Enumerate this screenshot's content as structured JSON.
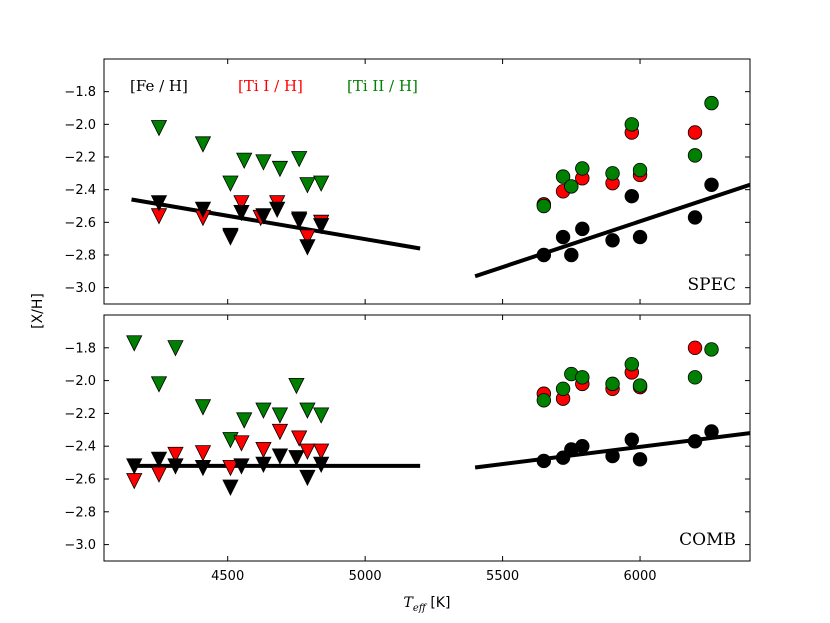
{
  "figure": {
    "ylabel": "[X/H]",
    "xlabel_main": "T",
    "xlabel_sub": "eff",
    "xlabel_unit": " [K]",
    "legend": [
      {
        "text": "[Fe / H]",
        "color": "#000000"
      },
      {
        "text": "[Ti I / H]",
        "color": "#ff0000"
      },
      {
        "text": "[Ti II / H]",
        "color": "#008000"
      }
    ]
  },
  "chart_data": [
    {
      "type": "scatter",
      "panel_label": "SPEC",
      "xlim": [
        4050,
        6400
      ],
      "ylim": [
        -3.1,
        -1.6
      ],
      "xticks": [
        4500,
        5000,
        5500,
        6000
      ],
      "xtick_labels": [
        "4500",
        "5000",
        "5500",
        "6000"
      ],
      "yticks": [
        -3.0,
        -2.8,
        -2.6,
        -2.4,
        -2.2,
        -2.0,
        -1.8
      ],
      "ytick_labels": [
        "−3.0",
        "−2.8",
        "−2.6",
        "−2.4",
        "−2.2",
        "−2.0",
        "−1.8"
      ],
      "series": [
        {
          "name": "Ti II upper limits",
          "marker": "triangle-down",
          "color": "#008000",
          "x": [
            4250,
            4410,
            4510,
            4560,
            4630,
            4690,
            4760,
            4790,
            4840
          ],
          "y": [
            -2.01,
            -2.11,
            -2.35,
            -2.21,
            -2.22,
            -2.26,
            -2.2,
            -2.36,
            -2.35
          ]
        },
        {
          "name": "Ti I upper limits",
          "marker": "triangle-down",
          "color": "#ff0000",
          "x": [
            4250,
            4410,
            4510,
            4550,
            4620,
            4680,
            4760,
            4790,
            4840
          ],
          "y": [
            -2.55,
            -2.56,
            -2.68,
            -2.47,
            -2.56,
            -2.47,
            -2.58,
            -2.68,
            -2.59
          ]
        },
        {
          "name": "Fe upper limits",
          "marker": "triangle-down",
          "color": "#000000",
          "x": [
            4250,
            4410,
            4510,
            4550,
            4630,
            4680,
            4760,
            4790,
            4840
          ],
          "y": [
            -2.47,
            -2.51,
            -2.67,
            -2.53,
            -2.55,
            -2.51,
            -2.57,
            -2.74,
            -2.61
          ]
        },
        {
          "name": "Ti I",
          "marker": "circle",
          "color": "#ff0000",
          "x": [
            5650,
            5720,
            5790,
            5900,
            5970,
            6000,
            6200
          ],
          "y": [
            -2.49,
            -2.41,
            -2.33,
            -2.36,
            -2.05,
            -2.31,
            -2.05
          ]
        },
        {
          "name": "Ti II",
          "marker": "circle",
          "color": "#008000",
          "x": [
            5650,
            5720,
            5750,
            5790,
            5900,
            5970,
            6000,
            6200,
            6260
          ],
          "y": [
            -2.5,
            -2.32,
            -2.38,
            -2.27,
            -2.3,
            -2.0,
            -2.28,
            -2.19,
            -1.87
          ]
        },
        {
          "name": "Fe",
          "marker": "circle",
          "color": "#000000",
          "x": [
            5650,
            5720,
            5750,
            5790,
            5900,
            5970,
            6000,
            6200,
            6260
          ],
          "y": [
            -2.8,
            -2.69,
            -2.8,
            -2.64,
            -2.71,
            -2.44,
            -2.69,
            -2.57,
            -2.37
          ]
        }
      ],
      "fit_lines": [
        {
          "x": [
            4150,
            5200
          ],
          "y": [
            -2.46,
            -2.76
          ]
        },
        {
          "x": [
            5400,
            6400
          ],
          "y": [
            -2.93,
            -2.37
          ]
        }
      ]
    },
    {
      "type": "scatter",
      "panel_label": "COMB",
      "xlim": [
        4050,
        6400
      ],
      "ylim": [
        -3.1,
        -1.6
      ],
      "xticks": [
        4500,
        5000,
        5500,
        6000
      ],
      "xtick_labels": [
        "4500",
        "5000",
        "5500",
        "6000"
      ],
      "yticks": [
        -3.0,
        -2.8,
        -2.6,
        -2.4,
        -2.2,
        -2.0,
        -1.8
      ],
      "ytick_labels": [
        "−3.0",
        "−2.8",
        "−2.6",
        "−2.4",
        "−2.2",
        "−2.0",
        "−1.8"
      ],
      "series": [
        {
          "name": "Ti II upper limits",
          "marker": "triangle-down",
          "color": "#008000",
          "x": [
            4160,
            4250,
            4310,
            4410,
            4510,
            4560,
            4630,
            4690,
            4750,
            4790,
            4840
          ],
          "y": [
            -1.76,
            -2.01,
            -1.79,
            -2.15,
            -2.35,
            -2.23,
            -2.17,
            -2.2,
            -2.02,
            -2.17,
            -2.2
          ]
        },
        {
          "name": "Ti I upper limits",
          "marker": "triangle-down",
          "color": "#ff0000",
          "x": [
            4160,
            4250,
            4310,
            4410,
            4510,
            4550,
            4630,
            4690,
            4760,
            4790,
            4840
          ],
          "y": [
            -2.6,
            -2.56,
            -2.44,
            -2.43,
            -2.52,
            -2.37,
            -2.41,
            -2.3,
            -2.34,
            -2.42,
            -2.42
          ]
        },
        {
          "name": "Fe upper limits",
          "marker": "triangle-down",
          "color": "#000000",
          "x": [
            4160,
            4250,
            4310,
            4410,
            4510,
            4550,
            4630,
            4690,
            4750,
            4790,
            4840
          ],
          "y": [
            -2.51,
            -2.47,
            -2.51,
            -2.52,
            -2.64,
            -2.51,
            -2.5,
            -2.45,
            -2.46,
            -2.58,
            -2.5
          ]
        },
        {
          "name": "Ti I",
          "marker": "circle",
          "color": "#ff0000",
          "x": [
            5650,
            5720,
            5790,
            5900,
            5970,
            6000,
            6200
          ],
          "y": [
            -2.08,
            -2.11,
            -2.02,
            -2.05,
            -1.95,
            -2.04,
            -1.8
          ]
        },
        {
          "name": "Ti II",
          "marker": "circle",
          "color": "#008000",
          "x": [
            5650,
            5720,
            5750,
            5790,
            5900,
            5970,
            6000,
            6200,
            6260
          ],
          "y": [
            -2.12,
            -2.05,
            -1.96,
            -1.98,
            -2.02,
            -1.9,
            -2.03,
            -1.98,
            -1.81
          ]
        },
        {
          "name": "Fe",
          "marker": "circle",
          "color": "#000000",
          "x": [
            5650,
            5720,
            5750,
            5790,
            5900,
            5970,
            6000,
            6200,
            6260
          ],
          "y": [
            -2.49,
            -2.47,
            -2.42,
            -2.4,
            -2.46,
            -2.36,
            -2.48,
            -2.37,
            -2.31
          ]
        }
      ],
      "fit_lines": [
        {
          "x": [
            4150,
            5200
          ],
          "y": [
            -2.52,
            -2.52
          ]
        },
        {
          "x": [
            5400,
            6400
          ],
          "y": [
            -2.53,
            -2.32
          ]
        }
      ]
    }
  ]
}
